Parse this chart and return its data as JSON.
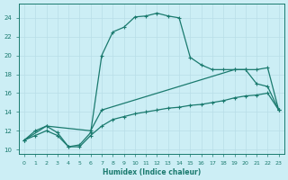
{
  "xlabel": "Humidex (Indice chaleur)",
  "line_color": "#1a7a6e",
  "bg_color": "#cceef5",
  "grid_color": "#b8dde8",
  "xlim": [
    -0.5,
    23.5
  ],
  "ylim": [
    9.5,
    25.5
  ],
  "xticks": [
    0,
    1,
    2,
    3,
    4,
    5,
    6,
    7,
    8,
    9,
    10,
    11,
    12,
    13,
    14,
    15,
    16,
    17,
    18,
    19,
    20,
    21,
    22,
    23
  ],
  "yticks": [
    10,
    12,
    14,
    16,
    18,
    20,
    22,
    24
  ],
  "line_peak_x": [
    0,
    1,
    2,
    3,
    4,
    5,
    6,
    7,
    8,
    9,
    10,
    11,
    12,
    13,
    14,
    15,
    16,
    17,
    18,
    19,
    20,
    21,
    22,
    23
  ],
  "line_peak_y": [
    11,
    12,
    12.5,
    11.8,
    10.3,
    10.5,
    11.8,
    20.0,
    22.5,
    23.0,
    24.1,
    24.2,
    24.5,
    24.2,
    24.0,
    19.8,
    19.0,
    18.5,
    18.5,
    18.5,
    18.5,
    17.0,
    16.7,
    14.2
  ],
  "line_high_x": [
    0,
    2,
    6,
    7,
    19,
    20,
    21,
    22,
    23
  ],
  "line_high_y": [
    11,
    12.5,
    12.0,
    14.2,
    18.5,
    18.5,
    18.5,
    18.7,
    14.2
  ],
  "line_low_x": [
    0,
    1,
    2,
    3,
    4,
    5,
    6,
    7,
    8,
    9,
    10,
    11,
    12,
    13,
    14,
    15,
    16,
    17,
    18,
    19,
    20,
    21,
    22,
    23
  ],
  "line_low_y": [
    11,
    11.5,
    12.0,
    11.5,
    10.3,
    10.3,
    11.5,
    12.5,
    13.2,
    13.5,
    13.8,
    14.0,
    14.2,
    14.4,
    14.5,
    14.7,
    14.8,
    15.0,
    15.2,
    15.5,
    15.7,
    15.8,
    16.0,
    14.2
  ]
}
